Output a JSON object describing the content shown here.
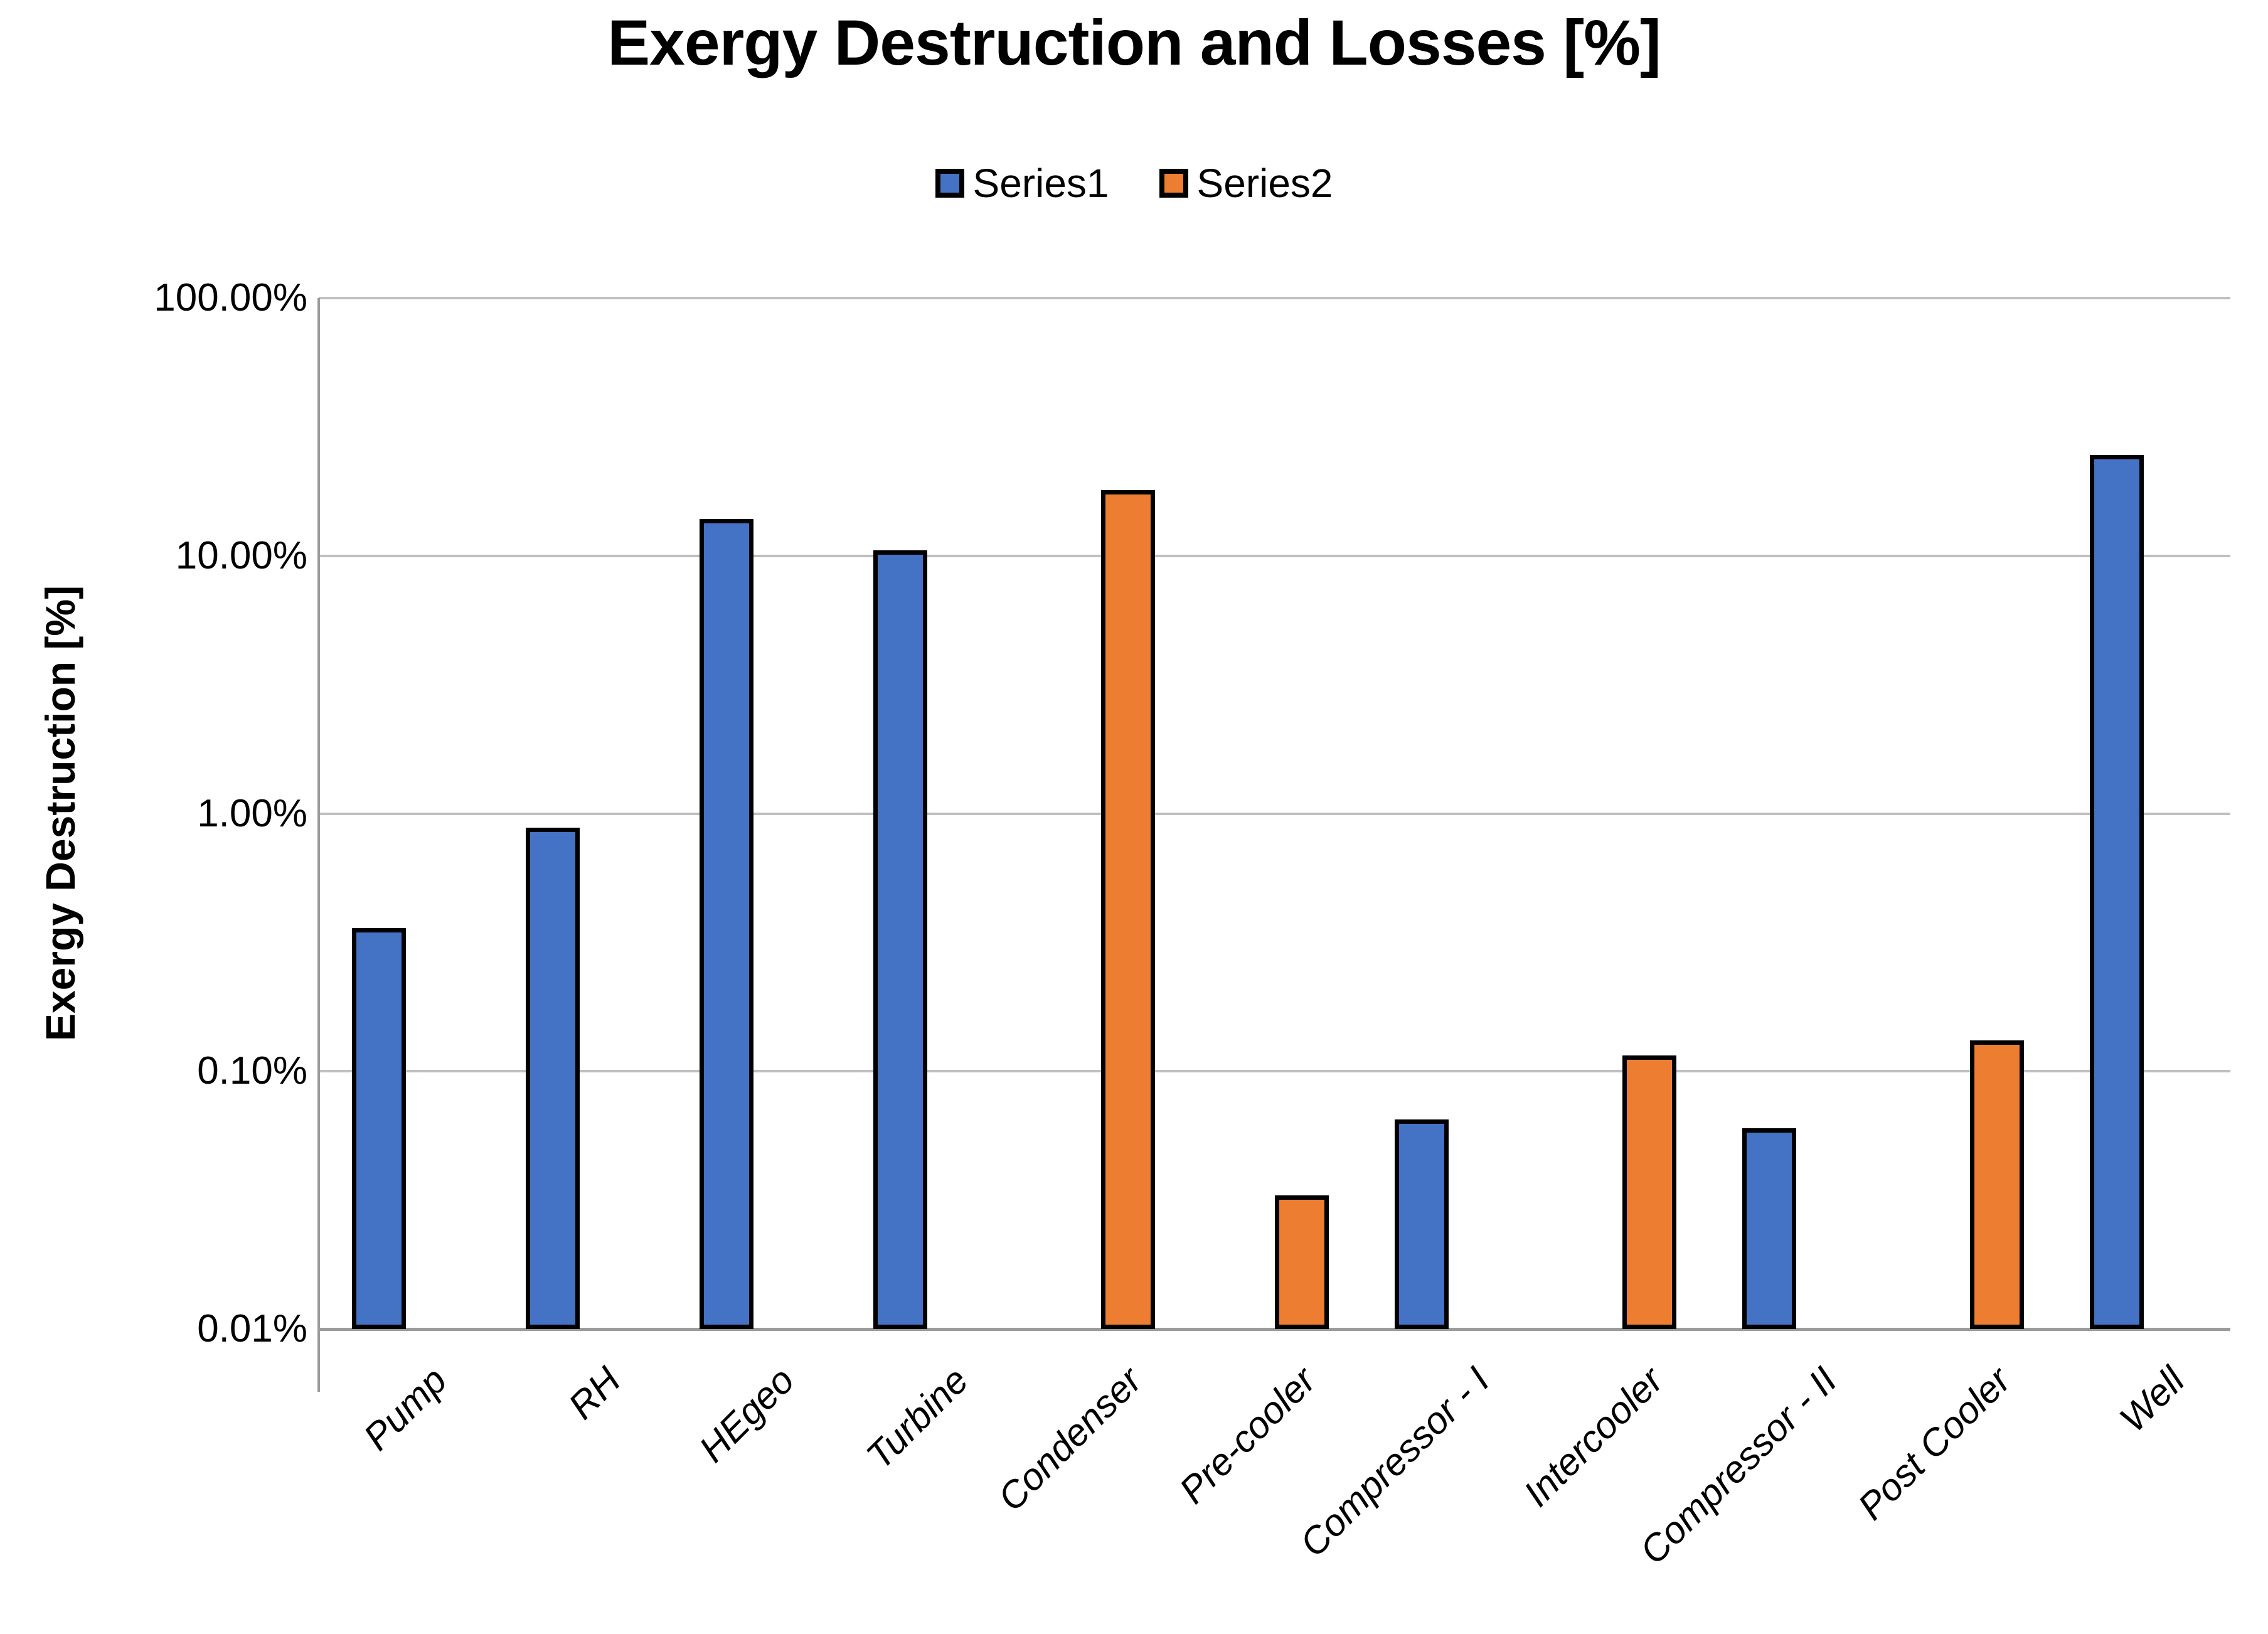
{
  "chart_data": {
    "type": "bar",
    "title": "Exergy Destruction and Losses [%]",
    "ylabel": "Exergy Destruction [%]",
    "xlabel": "",
    "y_scale": "log",
    "ylim_percent": [
      0.01,
      100
    ],
    "y_tick_labels": [
      "100.00%",
      "10.00%",
      "1.00%",
      "0.10%",
      "0.01%"
    ],
    "y_tick_values": [
      100,
      10,
      1,
      0.1,
      0.01
    ],
    "grid": "horizontal",
    "legend_position": "top",
    "categories": [
      "Pump",
      "RH",
      "HEgeo",
      "Turbine",
      "Condenser",
      "Pre-cooler",
      "Compressor - I",
      "Intercooler",
      "Compressor - II",
      "Post Cooler",
      "Well"
    ],
    "series": [
      {
        "name": "Series1",
        "color": "#4472C4",
        "values": [
          0.36,
          0.88,
          13.9,
          10.5,
          null,
          null,
          0.065,
          null,
          0.06,
          null,
          24.6
        ]
      },
      {
        "name": "Series2",
        "color": "#ED7D31",
        "values": [
          null,
          null,
          null,
          null,
          18.0,
          0.033,
          null,
          0.115,
          null,
          0.132,
          null
        ]
      }
    ],
    "bar_border_color": "#000000",
    "gridline_color": "#bfbfbf",
    "axis_line_color": "#9b9b9b"
  }
}
